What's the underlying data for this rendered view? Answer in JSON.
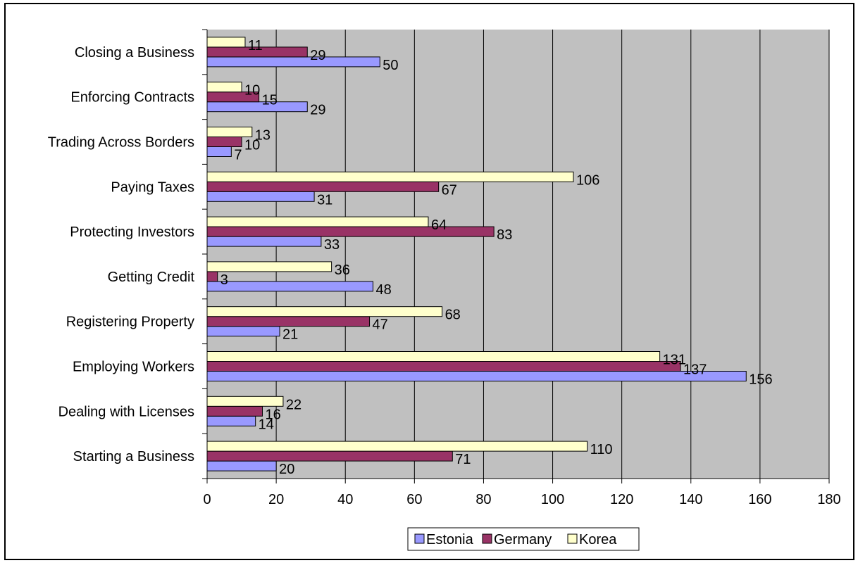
{
  "chart_data": {
    "type": "bar",
    "orientation": "horizontal",
    "title": "",
    "xlabel": "",
    "ylabel": "",
    "categories": [
      "Starting a Business",
      "Dealing with Licenses",
      "Employing Workers",
      "Registering Property",
      "Getting Credit",
      "Protecting Investors",
      "Paying Taxes",
      "Trading Across Borders",
      "Enforcing Contracts",
      "Closing a Business"
    ],
    "series": [
      {
        "name": "Estonia",
        "color": "#9999FF",
        "values": [
          20,
          14,
          156,
          21,
          48,
          33,
          31,
          7,
          29,
          50
        ]
      },
      {
        "name": "Germany",
        "color": "#993366",
        "values": [
          71,
          16,
          137,
          47,
          3,
          83,
          67,
          10,
          15,
          29
        ]
      },
      {
        "name": "Korea",
        "color": "#FFFFCC",
        "values": [
          110,
          22,
          131,
          68,
          36,
          64,
          106,
          13,
          10,
          11
        ]
      }
    ],
    "xlim": [
      0,
      180
    ],
    "xticks": [
      "0",
      "20",
      "40",
      "60",
      "80",
      "100",
      "120",
      "140",
      "160",
      "180"
    ],
    "grid": true,
    "data_labels": true,
    "legend_position": "bottom",
    "plot_background": "#C0C0C0"
  }
}
